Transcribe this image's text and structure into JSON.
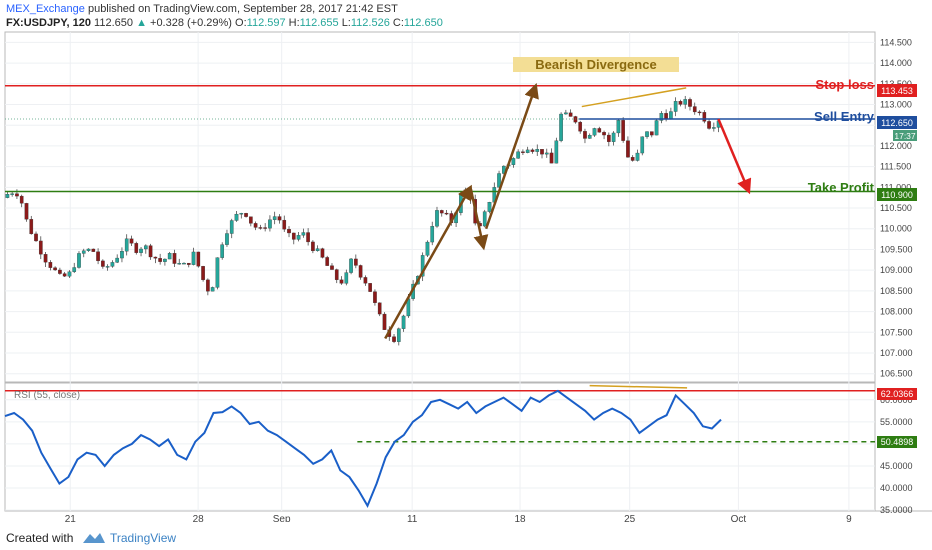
{
  "header": {
    "publisher": "MEX_Exchange",
    "published_text": "published on TradingView.com, September 28, 2017 21:42 EST",
    "symbol": "FX:USDJPY, 120",
    "last": "112.650",
    "change": "+0.328 (+0.29%)",
    "open_label": "O:",
    "open": "112.597",
    "high_label": "H:",
    "high": "112.655",
    "low_label": "L:",
    "low": "112.526",
    "close_label": "C:",
    "close": "112.650"
  },
  "footer": {
    "created_with": "Created with",
    "brand": "TradingView"
  },
  "colors": {
    "up": "#26a69a",
    "down": "#8b1a1a",
    "rsi": "#1a5fc8",
    "stop": "#e02020",
    "entry": "#1f4e9e",
    "tp": "#2e7d12",
    "arrow_brown": "#7a4a16",
    "divergence": "#d4a020"
  },
  "chart_data": [
    {
      "type": "candlestick",
      "title": "FX:USDJPY, 120",
      "ylim": [
        106.3,
        114.75
      ],
      "y_ticks": [
        "114.500",
        "114.000",
        "113.500",
        "113.000",
        "112.500",
        "112.000",
        "111.500",
        "111.000",
        "110.500",
        "110.000",
        "109.500",
        "109.000",
        "108.500",
        "108.000",
        "107.500",
        "107.000",
        "106.500"
      ],
      "x_ticks": [
        "21",
        "28",
        "Sep",
        "11",
        "18",
        "25",
        "Oct",
        "9"
      ],
      "price_path": [
        110.75,
        110.9,
        110.85,
        110.1,
        109.7,
        109.3,
        109.05,
        108.8,
        108.9,
        109.3,
        109.5,
        109.45,
        109.0,
        109.15,
        109.4,
        109.7,
        109.5,
        109.6,
        109.35,
        109.2,
        109.35,
        109.15,
        109.1,
        109.4,
        108.8,
        108.4,
        109.5,
        110.0,
        110.3,
        110.45,
        110.1,
        109.95,
        110.2,
        110.35,
        109.85,
        109.75,
        109.9,
        109.6,
        109.4,
        109.1,
        108.8,
        108.7,
        109.3,
        108.9,
        108.6,
        108.0,
        107.55,
        107.35,
        107.8,
        108.4,
        109.0,
        109.7,
        110.4,
        110.35,
        110.15,
        110.8,
        111.0,
        109.8,
        110.4,
        111.0,
        111.5,
        111.6,
        111.85,
        112.0,
        111.9,
        111.85,
        111.55,
        112.75,
        112.7,
        112.6,
        112.15,
        112.5,
        112.35,
        112.05,
        112.65,
        111.75,
        111.6,
        112.3,
        112.3,
        112.8,
        112.7,
        113.05,
        113.05,
        112.9,
        112.75,
        112.45,
        112.65
      ],
      "levels": [
        {
          "label": "Stop loss",
          "value": "113.453"
        },
        {
          "label": "Sell Entry",
          "value": "112.650"
        },
        {
          "label": "Take Profit",
          "value": "110.900"
        }
      ],
      "price_badge_time": "17:37",
      "annotations": [
        "Bearish Divergence"
      ]
    },
    {
      "type": "line",
      "title": "RSI (55, close)",
      "ylim": [
        34.8,
        63.8
      ],
      "y_ticks": [
        "60.0000",
        "55.0000",
        "50.0000",
        "45.0000",
        "40.0000",
        "35.0000"
      ],
      "levels": [
        {
          "value": "62.0366"
        },
        {
          "value": "50.4898"
        }
      ],
      "values": [
        56.3,
        57.0,
        55.5,
        53.0,
        48.0,
        44.5,
        41.0,
        42.5,
        46.5,
        48.0,
        47.5,
        45.0,
        47.5,
        49.0,
        50.0,
        52.0,
        51.0,
        49.5,
        51.0,
        47.5,
        46.5,
        50.5,
        52.5,
        57.0,
        57.2,
        58.5,
        57.0,
        54.5,
        55.0,
        53.0,
        52.0,
        50.5,
        49.0,
        47.5,
        45.5,
        46.5,
        48.5,
        44.0,
        42.5,
        39.5,
        36.0,
        41.0,
        47.0,
        50.5,
        52.0,
        55.0,
        56.5,
        59.5,
        60.0,
        59.0,
        58.0,
        59.5,
        57.0,
        58.5,
        59.5,
        60.5,
        59.0,
        57.5,
        60.5,
        59.5,
        61.0,
        62.0,
        60.5,
        59.0,
        57.5,
        55.5,
        57.0,
        58.0,
        57.0,
        55.5,
        52.5,
        54.0,
        55.5,
        56.5,
        61.0,
        59.0,
        57.0,
        54.0,
        53.5,
        55.5
      ]
    }
  ]
}
